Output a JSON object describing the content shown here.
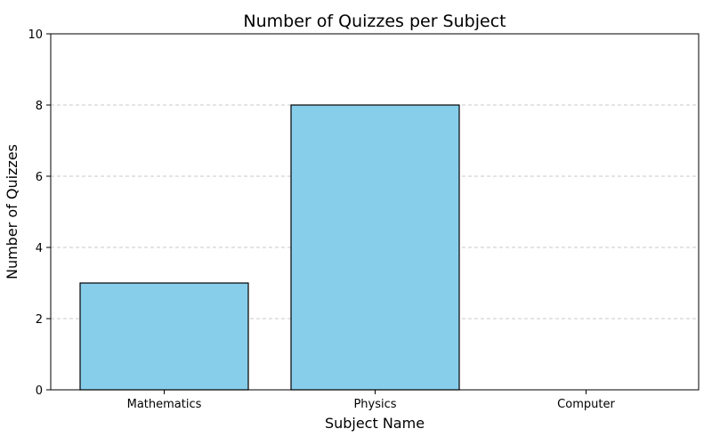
{
  "chart_data": {
    "type": "bar",
    "title": "Number of Quizzes per Subject",
    "xlabel": "Subject Name",
    "ylabel": "Number of Quizzes",
    "categories": [
      "Mathematics",
      "Physics",
      "Computer"
    ],
    "values": [
      3,
      8,
      0
    ],
    "ylim": [
      0,
      10
    ],
    "yticks": [
      0,
      2,
      4,
      6,
      8,
      10
    ],
    "grid": "y-dashed",
    "colors": {
      "bar_fill": "#87ceeb",
      "bar_edge": "#000000",
      "grid": "#c8c8c8"
    }
  }
}
